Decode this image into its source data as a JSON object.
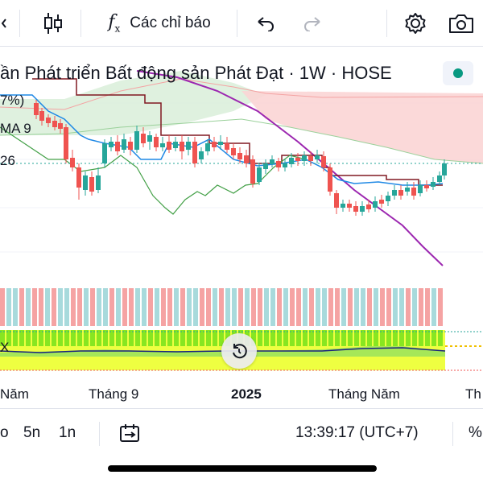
{
  "toolbar": {
    "indicators_label": "Các chỉ báo",
    "fx_label": "f",
    "fx_sub": "x"
  },
  "legend": {
    "symbol_title": "ần Phát triển Bất động sản Phát Đạt · 1W · HOSE",
    "line1": "7%)",
    "line2": "MA 9",
    "line3": "26"
  },
  "time_axis": {
    "labels": [
      "Năm",
      "Tháng 9",
      "2025",
      "Tháng Năm",
      "Th"
    ]
  },
  "bottombar": {
    "range_partial": "o",
    "range_5d": "5n",
    "range_1d": "1n",
    "clock": "13:39:17 (UTC+7)",
    "percent": "%"
  },
  "colors": {
    "up": "#26a69a",
    "down": "#ef5350",
    "cloud_bull": "#d9efd9",
    "cloud_bear": "#fbd5d5",
    "tenkan": "#1e88e5",
    "kijun": "#801922",
    "lagging": "#43a047",
    "ma_long": "#9c27b0"
  }
}
